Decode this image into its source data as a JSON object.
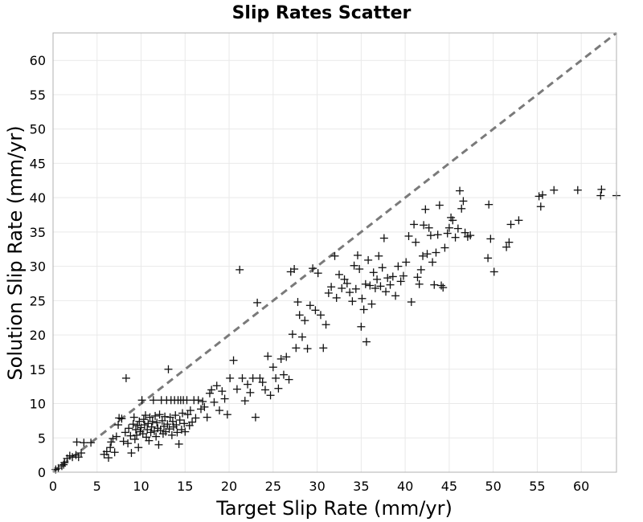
{
  "chart_data": {
    "type": "scatter",
    "title": "Slip Rates Scatter",
    "xlabel": "Target Slip Rate (mm/yr)",
    "ylabel": "Solution Slip Rate (mm/yr)",
    "xlim": [
      0,
      64
    ],
    "ylim": [
      0,
      64
    ],
    "xticks": [
      0,
      5,
      10,
      15,
      20,
      25,
      30,
      35,
      40,
      45,
      50,
      55,
      60
    ],
    "yticks": [
      0,
      5,
      10,
      15,
      20,
      25,
      30,
      35,
      40,
      45,
      50,
      55,
      60
    ],
    "grid": true,
    "marker": "plus",
    "marker_color": "#111111",
    "reference_line": {
      "style": "dashed",
      "color": "#7a7a7a",
      "slope": 1,
      "intercept": 0
    },
    "points": [
      [
        0.3,
        0.4
      ],
      [
        0.6,
        0.6
      ],
      [
        1.0,
        0.9
      ],
      [
        1.3,
        1.4
      ],
      [
        1.6,
        2.0
      ],
      [
        1.9,
        2.4
      ],
      [
        2.2,
        2.2
      ],
      [
        2.6,
        2.5
      ],
      [
        2.9,
        2.2
      ],
      [
        3.2,
        2.8
      ],
      [
        3.5,
        4.3
      ],
      [
        2.7,
        4.4
      ],
      [
        4.3,
        4.3
      ],
      [
        1.2,
        1.1
      ],
      [
        5.8,
        2.6
      ],
      [
        6.1,
        3.0
      ],
      [
        6.3,
        2.1
      ],
      [
        6.5,
        3.6
      ],
      [
        6.6,
        4.4
      ],
      [
        6.8,
        4.9
      ],
      [
        7.0,
        2.9
      ],
      [
        7.2,
        5.2
      ],
      [
        7.4,
        6.9
      ],
      [
        7.5,
        7.9
      ],
      [
        7.8,
        7.8
      ],
      [
        8.0,
        4.5
      ],
      [
        8.2,
        5.8
      ],
      [
        8.3,
        13.7
      ],
      [
        8.5,
        4.2
      ],
      [
        8.6,
        6.4
      ],
      [
        8.8,
        5.3
      ],
      [
        8.9,
        2.8
      ],
      [
        9.1,
        7.0
      ],
      [
        9.2,
        8.0
      ],
      [
        9.3,
        4.8
      ],
      [
        9.4,
        6.2
      ],
      [
        9.5,
        5.4
      ],
      [
        9.6,
        6.8
      ],
      [
        9.7,
        3.6
      ],
      [
        9.8,
        7.4
      ],
      [
        9.9,
        5.9
      ],
      [
        10.0,
        6.5
      ],
      [
        10.1,
        10.5
      ],
      [
        10.2,
        5.6
      ],
      [
        10.3,
        7.7
      ],
      [
        10.4,
        6.9
      ],
      [
        10.5,
        8.3
      ],
      [
        10.6,
        5.1
      ],
      [
        10.7,
        6.2
      ],
      [
        10.8,
        7.1
      ],
      [
        10.9,
        4.6
      ],
      [
        11.0,
        8.0
      ],
      [
        11.1,
        5.8
      ],
      [
        11.2,
        6.6
      ],
      [
        11.3,
        7.4
      ],
      [
        11.4,
        10.5
      ],
      [
        11.5,
        6.0
      ],
      [
        11.6,
        8.2
      ],
      [
        11.7,
        5.2
      ],
      [
        11.8,
        7.2
      ],
      [
        11.9,
        6.4
      ],
      [
        12.0,
        4.0
      ],
      [
        12.1,
        8.4
      ],
      [
        12.2,
        6.1
      ],
      [
        12.3,
        10.5
      ],
      [
        12.4,
        7.5
      ],
      [
        12.5,
        5.6
      ],
      [
        12.6,
        6.7
      ],
      [
        12.7,
        8.1
      ],
      [
        12.8,
        5.9
      ],
      [
        12.9,
        10.5
      ],
      [
        13.0,
        7.0
      ],
      [
        13.1,
        15.0
      ],
      [
        13.2,
        6.3
      ],
      [
        13.3,
        8.0
      ],
      [
        13.4,
        10.5
      ],
      [
        13.5,
        5.4
      ],
      [
        13.6,
        7.4
      ],
      [
        13.7,
        6.6
      ],
      [
        13.8,
        10.5
      ],
      [
        13.9,
        8.3
      ],
      [
        14.0,
        6.9
      ],
      [
        14.1,
        5.8
      ],
      [
        14.2,
        10.5
      ],
      [
        14.3,
        4.1
      ],
      [
        14.4,
        7.6
      ],
      [
        14.5,
        10.5
      ],
      [
        14.6,
        6.2
      ],
      [
        14.7,
        8.6
      ],
      [
        14.8,
        10.5
      ],
      [
        14.9,
        7.1
      ],
      [
        15.0,
        5.9
      ],
      [
        15.2,
        10.5
      ],
      [
        15.3,
        8.4
      ],
      [
        15.5,
        6.8
      ],
      [
        15.6,
        9.0
      ],
      [
        15.8,
        7.3
      ],
      [
        16.0,
        10.5
      ],
      [
        16.2,
        7.9
      ],
      [
        16.5,
        10.5
      ],
      [
        16.8,
        9.2
      ],
      [
        17.0,
        10.3
      ],
      [
        17.2,
        9.5
      ],
      [
        17.5,
        8.0
      ],
      [
        17.8,
        11.5
      ],
      [
        18.0,
        12.0
      ],
      [
        18.3,
        10.2
      ],
      [
        18.6,
        12.6
      ],
      [
        18.9,
        9.0
      ],
      [
        19.2,
        11.8
      ],
      [
        19.5,
        10.7
      ],
      [
        19.8,
        8.4
      ],
      [
        20.1,
        13.7
      ],
      [
        20.5,
        16.3
      ],
      [
        20.9,
        12.1
      ],
      [
        21.2,
        29.5
      ],
      [
        21.5,
        13.7
      ],
      [
        21.8,
        10.4
      ],
      [
        22.1,
        12.8
      ],
      [
        22.4,
        11.6
      ],
      [
        22.7,
        13.7
      ],
      [
        23.0,
        8.0
      ],
      [
        23.2,
        24.7
      ],
      [
        23.5,
        13.7
      ],
      [
        23.8,
        13.1
      ],
      [
        24.1,
        12.0
      ],
      [
        24.4,
        16.9
      ],
      [
        24.7,
        11.2
      ],
      [
        25.0,
        15.3
      ],
      [
        25.3,
        13.7
      ],
      [
        25.6,
        12.2
      ],
      [
        25.9,
        16.5
      ],
      [
        26.2,
        14.2
      ],
      [
        26.5,
        16.8
      ],
      [
        26.8,
        13.5
      ],
      [
        27.0,
        29.2
      ],
      [
        27.2,
        20.1
      ],
      [
        27.4,
        29.6
      ],
      [
        27.6,
        18.1
      ],
      [
        27.8,
        24.8
      ],
      [
        28.0,
        22.9
      ],
      [
        28.3,
        19.7
      ],
      [
        28.6,
        22.1
      ],
      [
        28.9,
        18.0
      ],
      [
        29.2,
        24.3
      ],
      [
        29.5,
        29.7
      ],
      [
        29.8,
        23.6
      ],
      [
        30.1,
        29.0
      ],
      [
        30.4,
        22.9
      ],
      [
        30.7,
        18.1
      ],
      [
        31.0,
        21.5
      ],
      [
        31.3,
        26.1
      ],
      [
        31.6,
        27.0
      ],
      [
        32.0,
        31.5
      ],
      [
        32.2,
        25.4
      ],
      [
        32.5,
        28.8
      ],
      [
        32.8,
        26.8
      ],
      [
        33.1,
        28.1
      ],
      [
        33.4,
        27.5
      ],
      [
        33.7,
        26.2
      ],
      [
        34.0,
        24.9
      ],
      [
        34.2,
        30.1
      ],
      [
        34.4,
        26.7
      ],
      [
        34.6,
        31.6
      ],
      [
        34.8,
        29.6
      ],
      [
        35.0,
        21.2
      ],
      [
        35.1,
        25.3
      ],
      [
        35.3,
        23.7
      ],
      [
        35.5,
        27.4
      ],
      [
        35.6,
        19.0
      ],
      [
        35.8,
        30.9
      ],
      [
        36.0,
        27.2
      ],
      [
        36.2,
        24.5
      ],
      [
        36.4,
        29.1
      ],
      [
        36.6,
        26.8
      ],
      [
        36.8,
        28.1
      ],
      [
        37.0,
        31.5
      ],
      [
        37.2,
        27.1
      ],
      [
        37.4,
        29.8
      ],
      [
        37.6,
        34.1
      ],
      [
        37.8,
        26.3
      ],
      [
        38.0,
        28.3
      ],
      [
        38.3,
        27.3
      ],
      [
        38.6,
        28.5
      ],
      [
        38.9,
        25.7
      ],
      [
        39.2,
        30.0
      ],
      [
        39.5,
        27.8
      ],
      [
        39.8,
        28.6
      ],
      [
        40.1,
        30.6
      ],
      [
        40.4,
        34.4
      ],
      [
        40.7,
        24.8
      ],
      [
        41.0,
        36.1
      ],
      [
        41.2,
        33.5
      ],
      [
        41.4,
        28.4
      ],
      [
        41.6,
        27.4
      ],
      [
        41.8,
        29.5
      ],
      [
        42.0,
        31.5
      ],
      [
        42.1,
        36.0
      ],
      [
        42.3,
        38.3
      ],
      [
        42.5,
        31.8
      ],
      [
        42.7,
        35.6
      ],
      [
        42.9,
        34.5
      ],
      [
        43.1,
        30.6
      ],
      [
        43.3,
        27.3
      ],
      [
        43.5,
        32.0
      ],
      [
        43.7,
        34.6
      ],
      [
        43.9,
        38.9
      ],
      [
        44.1,
        27.2
      ],
      [
        44.3,
        26.9
      ],
      [
        44.5,
        32.7
      ],
      [
        44.8,
        34.8
      ],
      [
        45.0,
        35.6
      ],
      [
        45.2,
        37.1
      ],
      [
        45.4,
        36.7
      ],
      [
        45.7,
        34.2
      ],
      [
        46.0,
        35.5
      ],
      [
        46.2,
        41.0
      ],
      [
        46.4,
        38.4
      ],
      [
        46.6,
        39.5
      ],
      [
        46.8,
        34.9
      ],
      [
        47.1,
        34.3
      ],
      [
        47.4,
        34.5
      ],
      [
        49.4,
        31.2
      ],
      [
        49.5,
        39.0
      ],
      [
        49.7,
        34.0
      ],
      [
        50.1,
        29.2
      ],
      [
        51.5,
        32.8
      ],
      [
        51.8,
        33.5
      ],
      [
        52.0,
        36.1
      ],
      [
        52.9,
        36.7
      ],
      [
        55.2,
        40.2
      ],
      [
        55.4,
        38.7
      ],
      [
        55.6,
        40.4
      ],
      [
        56.9,
        41.1
      ],
      [
        59.6,
        41.1
      ],
      [
        62.2,
        40.3
      ],
      [
        62.3,
        41.2
      ],
      [
        64.0,
        40.3
      ]
    ]
  }
}
